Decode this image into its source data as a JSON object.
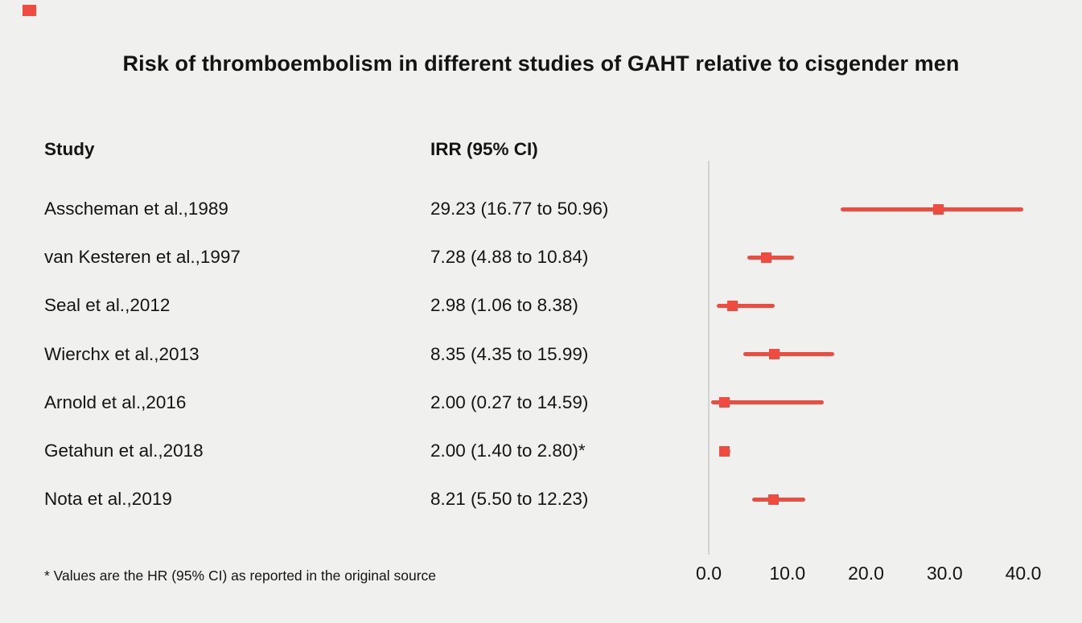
{
  "chart_data": {
    "type": "forest",
    "title": "Risk of thromboembolism in different studies of GAHT relative to cisgender men",
    "columns": {
      "study": "Study",
      "irr": "IRR (95% CI)"
    },
    "footnote": "* Values are the HR (95% CI) as reported in the original source",
    "xlim": [
      0,
      40
    ],
    "x_ticks": [
      {
        "value": 0,
        "label": "0.0"
      },
      {
        "value": 10,
        "label": "10.0"
      },
      {
        "value": 20,
        "label": "20.0"
      },
      {
        "value": 30,
        "label": "30.0"
      },
      {
        "value": 40,
        "label": "40.0"
      }
    ],
    "rows": [
      {
        "study": "Asscheman et al.,1989",
        "label": "29.23 (16.77 to 50.96)",
        "est": 29.23,
        "lo": 16.77,
        "hi": 50.96
      },
      {
        "study": "van Kesteren et al.,1997",
        "label": "7.28 (4.88 to 10.84)",
        "est": 7.28,
        "lo": 4.88,
        "hi": 10.84
      },
      {
        "study": "Seal et al.,2012",
        "label": "2.98 (1.06 to 8.38)",
        "est": 2.98,
        "lo": 1.06,
        "hi": 8.38
      },
      {
        "study": "Wierchx et al.,2013",
        "label": "8.35 (4.35 to 15.99)",
        "est": 8.35,
        "lo": 4.35,
        "hi": 15.99
      },
      {
        "study": "Arnold et al.,2016",
        "label": "2.00 (0.27 to 14.59)",
        "est": 2.0,
        "lo": 0.27,
        "hi": 14.59
      },
      {
        "study": "Getahun et al.,2018",
        "label": "2.00 (1.40 to 2.80)*",
        "est": 2.0,
        "lo": 1.4,
        "hi": 2.8
      },
      {
        "study": "Nota et al.,2019",
        "label": "8.21 (5.50 to 12.23)",
        "est": 8.21,
        "lo": 5.5,
        "hi": 12.23
      }
    ],
    "colors": {
      "marker": "#ee4c40",
      "axis": "#d3d3d1",
      "background": "#f0f0ee"
    },
    "legend": "none",
    "grid": "off"
  }
}
